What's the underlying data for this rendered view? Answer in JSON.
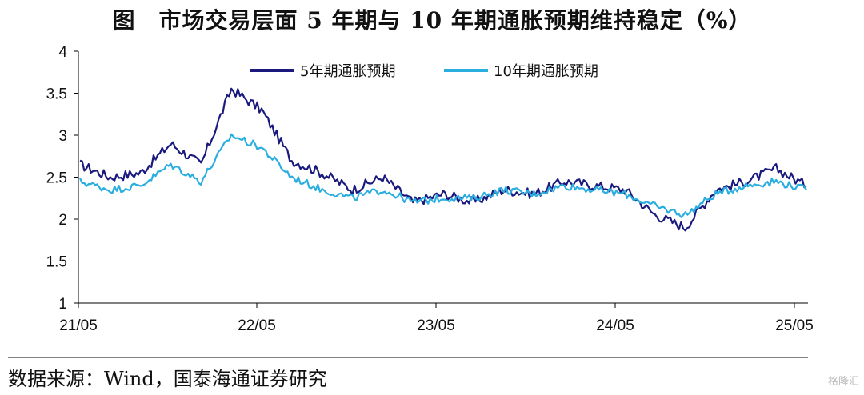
{
  "title": "图　市场交易层面 5 年期与 10 年期通胀预期维持稳定（%）",
  "source": "数据来源：Wind，国泰海通证券研究",
  "watermark": "格隆汇",
  "colors": {
    "series_5y": "#1a1a7e",
    "series_10y": "#2aaee0",
    "axis": "#000000"
  },
  "chart_data": {
    "type": "line",
    "title": "",
    "xlabel": "",
    "ylabel": "",
    "x_ticks": [
      "21/05",
      "22/05",
      "23/05",
      "24/05",
      "25/05"
    ],
    "ylim": [
      1,
      4
    ],
    "y_ticks": [
      "1",
      "1.5",
      "2",
      "2.5",
      "3",
      "3.5",
      "4"
    ],
    "grid": false,
    "legend_position": "top-center",
    "x": [
      "21/05",
      "21/07",
      "21/09",
      "21/11",
      "22/01",
      "22/03",
      "22/05",
      "22/07",
      "22/09",
      "22/11",
      "23/01",
      "23/03",
      "23/05",
      "23/07",
      "23/09",
      "23/11",
      "24/01",
      "24/03",
      "24/05",
      "24/07",
      "24/09",
      "24/11",
      "25/01",
      "25/03",
      "25/05"
    ],
    "series": [
      {
        "name": "5年期通胀预期",
        "values": [
          2.65,
          2.5,
          2.55,
          2.9,
          2.65,
          3.55,
          3.3,
          2.7,
          2.55,
          2.35,
          2.5,
          2.2,
          2.3,
          2.2,
          2.35,
          2.3,
          2.45,
          2.4,
          2.35,
          2.05,
          1.9,
          2.35,
          2.45,
          2.6,
          2.4
        ]
      },
      {
        "name": "10年期通胀预期",
        "values": [
          2.45,
          2.35,
          2.4,
          2.65,
          2.45,
          3.0,
          2.85,
          2.5,
          2.35,
          2.25,
          2.35,
          2.2,
          2.25,
          2.25,
          2.35,
          2.3,
          2.4,
          2.35,
          2.3,
          2.15,
          2.05,
          2.3,
          2.4,
          2.45,
          2.35
        ]
      }
    ]
  }
}
